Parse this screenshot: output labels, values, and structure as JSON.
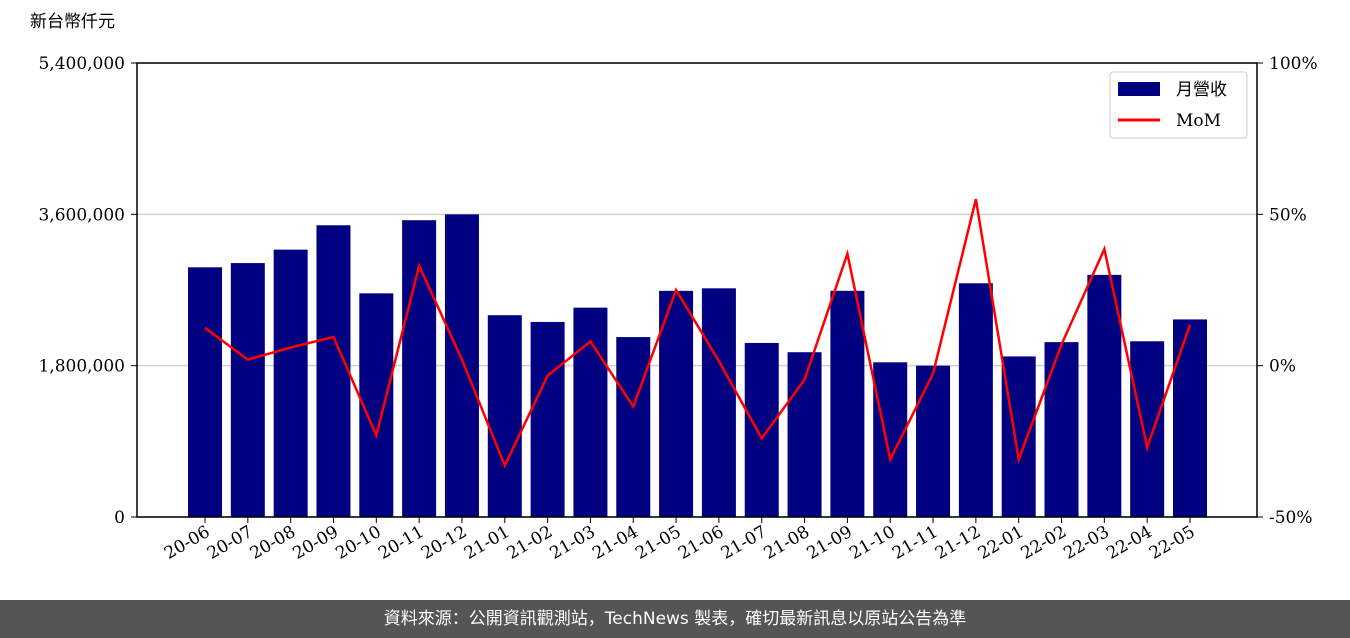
{
  "chart_data": {
    "type": "bar-line",
    "y_axis_label": "新台幣仟元",
    "categories": [
      "20-06",
      "20-07",
      "20-08",
      "20-09",
      "20-10",
      "20-11",
      "20-12",
      "21-01",
      "21-02",
      "21-03",
      "21-04",
      "21-05",
      "21-06",
      "21-07",
      "21-08",
      "21-09",
      "21-10",
      "21-11",
      "21-12",
      "22-01",
      "22-02",
      "22-03",
      "22-04",
      "22-05"
    ],
    "series": [
      {
        "name": "月營收",
        "type": "bar",
        "color": "#000080",
        "axis": "y",
        "values": [
          2970000,
          3020000,
          3180000,
          3470000,
          2660000,
          3530000,
          3600000,
          2400000,
          2320000,
          2490000,
          2140000,
          2690000,
          2720000,
          2070000,
          1960000,
          2690000,
          1840000,
          1800000,
          2780000,
          1910000,
          2080000,
          2880000,
          2090000,
          2350000
        ]
      },
      {
        "name": "MoM",
        "type": "line",
        "color": "#ff0000",
        "axis": "y2",
        "values": [
          12.5,
          2,
          6,
          9.5,
          -23,
          33,
          2,
          -33,
          -3.3,
          8,
          -13.5,
          25,
          1.5,
          -24,
          -4.6,
          37,
          -31,
          -2.6,
          55,
          -31,
          7,
          38.5,
          -27,
          13.5
        ]
      }
    ],
    "ylim": [
      0,
      5400000
    ],
    "yticks": [
      0,
      {
        "value": 1800000,
        "label": "1,800,000"
      },
      {
        "value": 3600000,
        "label": "3,600,000"
      },
      {
        "value": 5400000,
        "label": "5,400,000"
      }
    ],
    "y2lim": [
      -50,
      100
    ],
    "y2ticks": [
      {
        "value": -50,
        "label": "-50%"
      },
      {
        "value": 0,
        "label": "0%"
      },
      {
        "value": 50,
        "label": "50%"
      },
      {
        "value": 100,
        "label": "100%"
      }
    ],
    "grid": true,
    "legend": "upper right",
    "footer": "資料來源：公開資訊觀測站，TechNews 製表，確切最新訊息以原站公告為準"
  }
}
